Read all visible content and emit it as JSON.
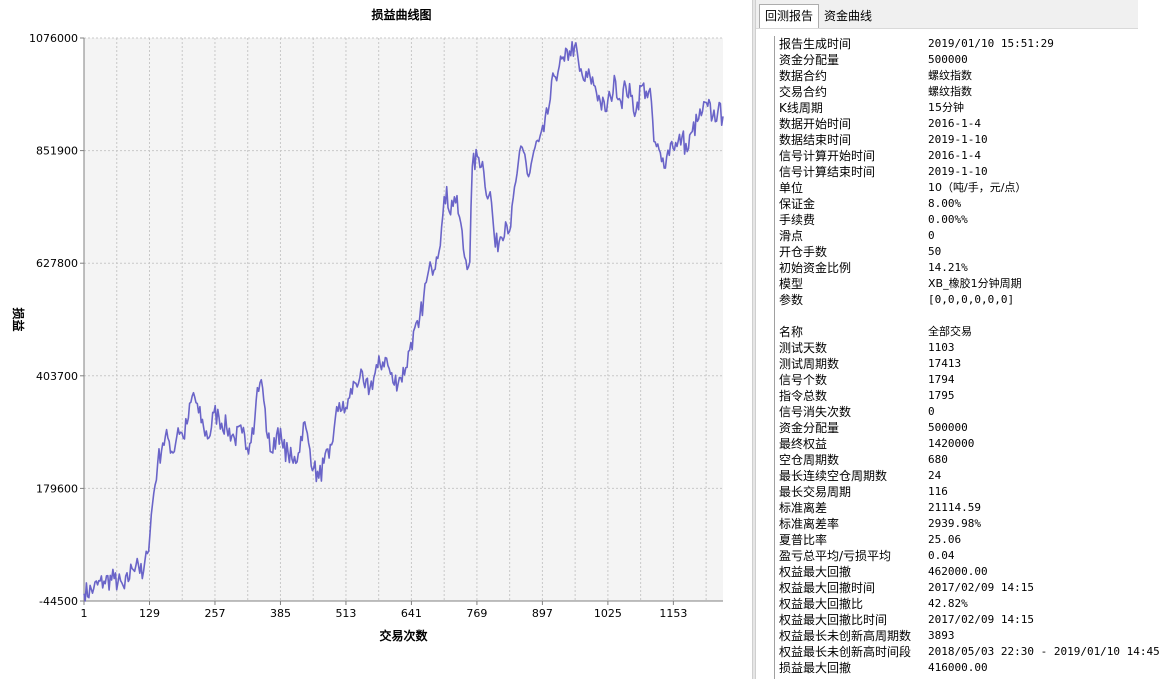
{
  "chart_data": {
    "type": "line",
    "title": "损益曲线图",
    "xlabel": "交易次数",
    "ylabel": "损益",
    "xlim": [
      1,
      1250
    ],
    "ylim": [
      -44500,
      1076000
    ],
    "x_ticks": [
      1,
      129,
      257,
      385,
      513,
      641,
      769,
      897,
      1025,
      1153
    ],
    "y_ticks": [
      1076000,
      851900,
      627800,
      403700,
      179600,
      -44500
    ],
    "grid": true,
    "line_color": "#6a64c8",
    "series": [
      {
        "x": [
          1,
          20,
          40,
          60,
          80,
          95,
          105,
          115,
          125,
          135,
          145,
          155,
          165,
          175,
          185,
          195,
          205,
          215,
          225,
          235,
          245,
          255,
          265,
          280,
          295,
          310,
          320,
          330,
          335,
          340,
          345,
          350,
          360,
          370,
          380,
          390,
          400,
          410,
          420,
          430,
          440,
          450,
          460,
          470,
          480,
          490,
          500,
          510,
          520,
          530,
          540,
          550,
          560,
          575,
          590,
          605,
          620,
          630,
          640,
          655,
          665,
          670,
          680,
          690,
          700,
          710,
          715,
          725,
          735,
          745,
          755,
          760,
          770,
          780,
          785,
          795,
          805,
          815,
          825,
          835,
          845,
          850,
          860,
          870,
          880,
          890,
          900,
          910,
          920,
          930,
          940,
          950,
          960,
          970,
          980,
          990,
          1000,
          1010,
          1020,
          1030,
          1040,
          1050,
          1060,
          1070,
          1080,
          1090,
          1100,
          1110,
          1115,
          1120,
          1130,
          1140,
          1150,
          1160,
          1170,
          1180,
          1190,
          1200,
          1210,
          1220,
          1230,
          1240,
          1250
        ],
        "y": [
          -30000,
          -20000,
          -5000,
          0,
          -20000,
          20000,
          40000,
          0,
          50000,
          150000,
          230000,
          270000,
          280000,
          250000,
          300000,
          280000,
          320000,
          370000,
          330000,
          300000,
          280000,
          330000,
          320000,
          300000,
          280000,
          290000,
          260000,
          300000,
          320000,
          380000,
          390000,
          380000,
          280000,
          250000,
          300000,
          260000,
          250000,
          230000,
          250000,
          310000,
          270000,
          220000,
          200000,
          230000,
          240000,
          300000,
          350000,
          330000,
          360000,
          390000,
          400000,
          380000,
          380000,
          420000,
          440000,
          390000,
          400000,
          420000,
          470000,
          500000,
          560000,
          590000,
          620000,
          640000,
          700000,
          780000,
          730000,
          760000,
          720000,
          640000,
          630000,
          820000,
          840000,
          830000,
          780000,
          770000,
          660000,
          680000,
          710000,
          700000,
          790000,
          830000,
          850000,
          800000,
          850000,
          870000,
          890000,
          940000,
          1000000,
          1020000,
          1030000,
          1050000,
          1060000,
          1010000,
          990000,
          1000000,
          980000,
          950000,
          930000,
          960000,
          990000,
          950000,
          980000,
          960000,
          930000,
          980000,
          970000,
          950000,
          870000,
          860000,
          830000,
          840000,
          870000,
          860000,
          880000,
          850000,
          890000,
          910000,
          930000,
          940000,
          920000,
          930000,
          920000
        ]
      }
    ]
  },
  "tabs": [
    {
      "label": "回测报告"
    },
    {
      "label": "资金曲线"
    }
  ],
  "report": {
    "rows": [
      {
        "label": "报告生成时间",
        "value": "2019/01/10 15:51:29"
      },
      {
        "label": "资金分配量",
        "value": "500000"
      },
      {
        "label": "数据合约",
        "value": "螺纹指数"
      },
      {
        "label": "交易合约",
        "value": "螺纹指数"
      },
      {
        "label": "K线周期",
        "value": "15分钟"
      },
      {
        "label": "数据开始时间",
        "value": "2016-1-4"
      },
      {
        "label": "数据结束时间",
        "value": "2019-1-10"
      },
      {
        "label": "信号计算开始时间",
        "value": "2016-1-4"
      },
      {
        "label": "信号计算结束时间",
        "value": "2019-1-10"
      },
      {
        "label": "单位",
        "value": "10（吨/手，元/点）"
      },
      {
        "label": "保证金",
        "value": "8.00%"
      },
      {
        "label": "手续费",
        "value": "0.00%%"
      },
      {
        "label": "滑点",
        "value": "0"
      },
      {
        "label": "开仓手数",
        "value": "50"
      },
      {
        "label": "初始资金比例",
        "value": "14.21%"
      },
      {
        "label": "模型",
        "value": "XB_橡胶1分钟周期"
      },
      {
        "label": "参数",
        "value": "[0,0,0,0,0,0]"
      },
      {
        "label": "",
        "value": ""
      },
      {
        "label": "名称",
        "value": "全部交易"
      },
      {
        "label": "测试天数",
        "value": "1103"
      },
      {
        "label": "测试周期数",
        "value": "17413"
      },
      {
        "label": "信号个数",
        "value": "1794"
      },
      {
        "label": "指令总数",
        "value": "1795"
      },
      {
        "label": "信号消失次数",
        "value": "0"
      },
      {
        "label": "资金分配量",
        "value": "500000"
      },
      {
        "label": "最终权益",
        "value": "1420000"
      },
      {
        "label": "空仓周期数",
        "value": "680"
      },
      {
        "label": "最长连续空仓周期数",
        "value": "24"
      },
      {
        "label": "最长交易周期",
        "value": "116"
      },
      {
        "label": "标准离差",
        "value": "21114.59"
      },
      {
        "label": "标准离差率",
        "value": "2939.98%"
      },
      {
        "label": "夏普比率",
        "value": "25.06"
      },
      {
        "label": "盈亏总平均/亏损平均",
        "value": "0.04"
      },
      {
        "label": "权益最大回撤",
        "value": "462000.00"
      },
      {
        "label": "权益最大回撤时间",
        "value": "2017/02/09 14:15"
      },
      {
        "label": "权益最大回撤比",
        "value": "42.82%"
      },
      {
        "label": "权益最大回撤比时间",
        "value": "2017/02/09 14:15"
      },
      {
        "label": "权益最长未创新高周期数",
        "value": "3893"
      },
      {
        "label": "权益最长未创新高时间段",
        "value": "2018/05/03 22:30 - 2019/01/10 14:45"
      },
      {
        "label": "损益最大回撤",
        "value": "416000.00"
      }
    ]
  }
}
